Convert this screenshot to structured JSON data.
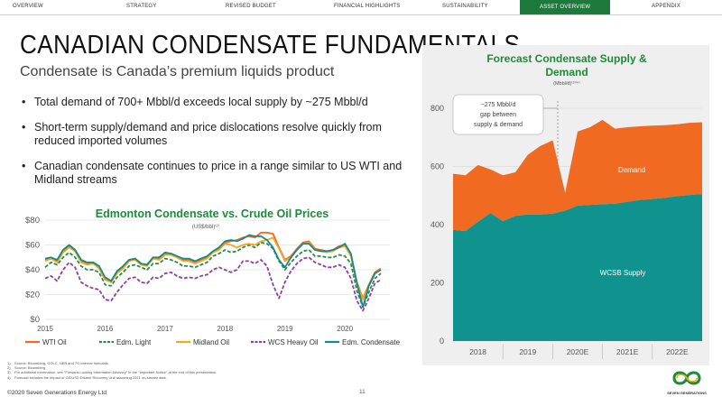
{
  "nav": {
    "items": [
      "OVERVIEW",
      "STRATEGY",
      "REVISED BUDGET",
      "FINANCIAL HIGHLIGHTS",
      "SUSTAINABILITY",
      "ASSET OVERVIEW",
      "APPENDIX"
    ],
    "active_index": 5
  },
  "page": {
    "title": "CANADIAN CONDENSATE FUNDAMENTALS",
    "subtitle": "Condensate is Canada’s premium liquids product",
    "bullets": [
      "Total demand of 700+ Mbbl/d exceeds local supply by ~275 Mbbl/d",
      "Short-term supply/demand and price dislocations resolve quickly from reduced imported volumes",
      "Canadian condensate continues to price in a range similar to US WTI and Midland streams"
    ]
  },
  "colors": {
    "green_title": "#1e8a3a",
    "wti": "#f06a22",
    "edm_light": "#2e8b4e",
    "midland": "#f5a623",
    "wcs": "#8e3fa6",
    "edm_condensate": "#148a8a",
    "demand": "#f06a22",
    "supply": "#10938f"
  },
  "chart_data": [
    {
      "type": "line",
      "title": "Edmonton Condensate vs. Crude Oil Prices",
      "subtitle": "(US$/bbl)⁽²⁾",
      "x_ticks": [
        "2015",
        "2016",
        "2017",
        "2018",
        "2019",
        "2020"
      ],
      "y_ticks": [
        "$0",
        "$20",
        "$40",
        "$60",
        "$80"
      ],
      "ylim": [
        0,
        80
      ],
      "xlim": [
        2015,
        2020.75
      ],
      "x": [
        2015.0,
        2015.1,
        2015.2,
        2015.3,
        2015.4,
        2015.5,
        2015.6,
        2015.7,
        2015.8,
        2015.9,
        2016.0,
        2016.1,
        2016.2,
        2016.3,
        2016.4,
        2016.5,
        2016.6,
        2016.7,
        2016.8,
        2016.9,
        2017.0,
        2017.1,
        2017.2,
        2017.3,
        2017.4,
        2017.5,
        2017.6,
        2017.7,
        2017.8,
        2017.9,
        2018.0,
        2018.1,
        2018.2,
        2018.3,
        2018.4,
        2018.5,
        2018.6,
        2018.7,
        2018.8,
        2018.9,
        2019.0,
        2019.1,
        2019.2,
        2019.3,
        2019.4,
        2019.5,
        2019.6,
        2019.7,
        2019.8,
        2019.9,
        2020.0,
        2020.1,
        2020.2,
        2020.3,
        2020.4,
        2020.5,
        2020.6
      ],
      "series": [
        {
          "name": "WTI Oil",
          "color": "#f06a22",
          "dash": "",
          "values": [
            48,
            50,
            47,
            55,
            59,
            56,
            47,
            45,
            46,
            42,
            33,
            30,
            38,
            42,
            48,
            49,
            45,
            44,
            50,
            49,
            53,
            53,
            51,
            48,
            48,
            46,
            48,
            50,
            55,
            57,
            62,
            63,
            64,
            66,
            67,
            66,
            70,
            70,
            69,
            58,
            48,
            51,
            57,
            62,
            63,
            57,
            56,
            55,
            56,
            59,
            60,
            52,
            30,
            17,
            28,
            38,
            41
          ]
        },
        {
          "name": "Edm. Light",
          "color": "#2e8b4e",
          "dash": "4,2",
          "values": [
            42,
            46,
            44,
            50,
            54,
            50,
            43,
            40,
            40,
            38,
            28,
            27,
            34,
            38,
            43,
            44,
            42,
            40,
            45,
            45,
            49,
            48,
            46,
            43,
            43,
            42,
            44,
            46,
            51,
            53,
            56,
            54,
            55,
            58,
            60,
            58,
            62,
            61,
            57,
            47,
            40,
            46,
            51,
            55,
            56,
            51,
            51,
            50,
            50,
            52,
            51,
            45,
            23,
            10,
            22,
            33,
            37
          ]
        },
        {
          "name": "Midland Oil",
          "color": "#f5a623",
          "dash": "",
          "values": [
            47,
            49,
            46,
            54,
            58,
            55,
            46,
            44,
            45,
            41,
            32,
            30,
            37,
            41,
            47,
            48,
            44,
            43,
            49,
            48,
            52,
            52,
            50,
            47,
            47,
            45,
            47,
            49,
            54,
            56,
            61,
            60,
            58,
            60,
            61,
            60,
            63,
            64,
            66,
            57,
            47,
            50,
            56,
            61,
            62,
            56,
            55,
            54,
            55,
            58,
            59,
            51,
            29,
            16,
            27,
            37,
            40
          ]
        },
        {
          "name": "WCS Heavy Oil",
          "color": "#8e3fa6",
          "dash": "4,2",
          "values": [
            33,
            35,
            31,
            40,
            46,
            42,
            30,
            27,
            25,
            24,
            16,
            15,
            22,
            28,
            33,
            34,
            30,
            29,
            34,
            33,
            37,
            38,
            35,
            33,
            34,
            33,
            35,
            36,
            40,
            42,
            40,
            38,
            40,
            47,
            47,
            45,
            48,
            43,
            28,
            17,
            30,
            39,
            45,
            49,
            50,
            46,
            44,
            42,
            42,
            44,
            42,
            33,
            15,
            7,
            17,
            29,
            32
          ]
        },
        {
          "name": "Edm. Condensate",
          "color": "#148a8a",
          "dash": "",
          "values": [
            49,
            50,
            48,
            56,
            60,
            56,
            48,
            46,
            46,
            43,
            34,
            31,
            39,
            43,
            48,
            49,
            45,
            44,
            50,
            50,
            54,
            53,
            51,
            49,
            49,
            47,
            49,
            51,
            55,
            58,
            63,
            64,
            63,
            65,
            68,
            67,
            67,
            64,
            58,
            48,
            42,
            50,
            56,
            61,
            61,
            56,
            55,
            55,
            56,
            58,
            61,
            53,
            29,
            10,
            27,
            37,
            40
          ]
        }
      ]
    },
    {
      "type": "area",
      "title": "Forecast Condensate Supply & Demand",
      "subtitle": "(Mbbl/d)⁽³⁾⁽⁴⁾",
      "x_ticks": [
        "2018",
        "2019",
        "2020E",
        "2021E",
        "2022E"
      ],
      "y_ticks": [
        "0",
        "200",
        "400",
        "600",
        "800"
      ],
      "ylim": [
        0,
        800
      ],
      "x": [
        0,
        0.25,
        0.5,
        0.75,
        1,
        1.25,
        1.5,
        1.75,
        2,
        2.25,
        2.5,
        2.75,
        3,
        3.25,
        3.5,
        3.75,
        4,
        4.25,
        4.5,
        4.75,
        5
      ],
      "series": [
        {
          "name": "WCSB Supply",
          "color": "#10938f",
          "values": [
            382,
            378,
            410,
            440,
            412,
            430,
            435,
            435,
            438,
            448,
            465,
            468,
            470,
            472,
            478,
            485,
            488,
            492,
            498,
            502,
            505
          ]
        },
        {
          "name": "Demand",
          "color": "#f06a22",
          "values": [
            575,
            570,
            605,
            590,
            570,
            580,
            640,
            670,
            690,
            510,
            720,
            735,
            760,
            730,
            735,
            738,
            740,
            742,
            745,
            750,
            752
          ]
        }
      ],
      "annotation": "~275 Mbbl/d gap between supply & demand"
    }
  ],
  "footnotes": [
    "Source: Bloomberg, COLC, NEB and 7G internal forecasts.",
    "Source: Bloomberg",
    "For additional information, see \"Forward-Looking Information Advisory\" in the \"Important Notice\" at the end of this presentation.",
    "Forecast includes the impact of GE/USD Diluent Recovery Unit assuming 2021 on-stream date."
  ],
  "footer": {
    "copyright": "©2020 Seven Generations Energy Ltd",
    "page_number": "11",
    "logo_text": "SEVEN GENERATIONS"
  }
}
